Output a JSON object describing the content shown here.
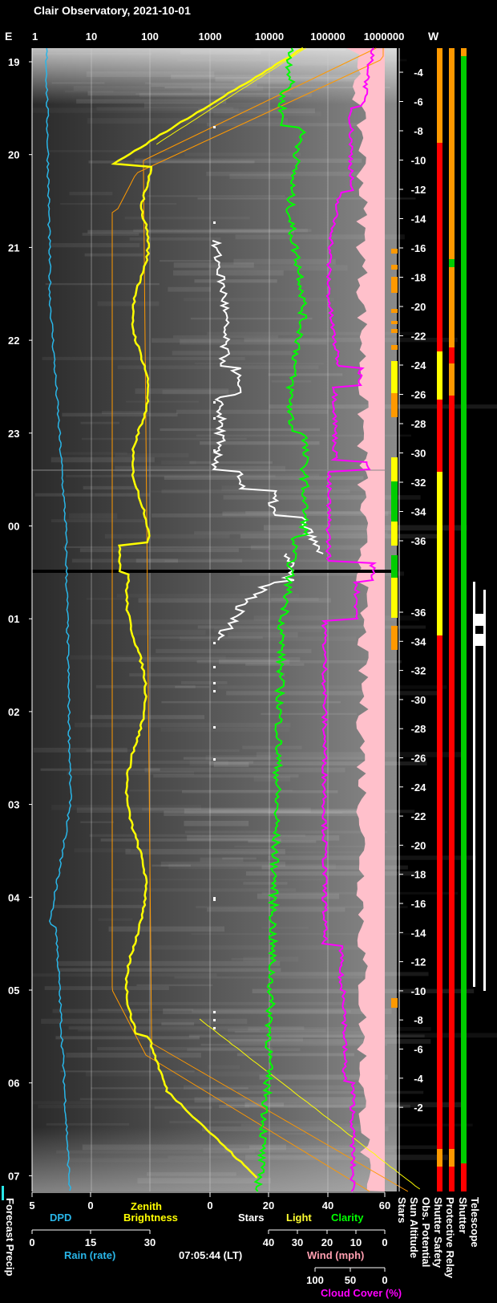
{
  "title": "Clair Observatory, 2021-10-01",
  "top_axis": {
    "left_label": "E",
    "right_label": "W",
    "ticks": [
      "1",
      "10",
      "100",
      "1000",
      "10000",
      "100000",
      "1000000"
    ]
  },
  "time_ticks": [
    "19",
    "20",
    "21",
    "22",
    "23",
    "00",
    "01",
    "02",
    "03",
    "04",
    "05",
    "06",
    "07"
  ],
  "sun_altitude_ticks": [
    "-4",
    "-6",
    "-8",
    "-10",
    "-12",
    "-14",
    "-16",
    "-18",
    "-20",
    "-22",
    "-24",
    "-26",
    "-28",
    "-30",
    "-32",
    "-34",
    "-36",
    "-36",
    "-34",
    "-32",
    "-30",
    "-28",
    "-26",
    "-24",
    "-22",
    "-20",
    "-18",
    "-16",
    "-14",
    "-12",
    "-10",
    "-8",
    "-6",
    "-4",
    "-2"
  ],
  "bottom_axes": {
    "row1": {
      "ticks": [
        "5",
        "0",
        "0",
        "20",
        "40",
        "60"
      ],
      "labels": {
        "dpd": "DPD",
        "zenith": "Zenith",
        "brightness": "Brightness",
        "stars": "Stars",
        "light": "Light",
        "clarity": "Clarity"
      }
    },
    "row2": {
      "rain_ticks": [
        "0",
        "15",
        "30"
      ],
      "rain_label": "Rain (rate)",
      "time": "07:05:44 (LT)",
      "wind_ticks": [
        "40",
        "30",
        "20",
        "10",
        "0"
      ],
      "wind_label": "Wind (mph)"
    },
    "row3": {
      "cloud_ticks": [
        "100",
        "50",
        "0"
      ],
      "cloud_label": "Cloud Cover (%)"
    }
  },
  "vertical_labels": [
    "Stars",
    "Sun Altitude",
    "Obs. Potential",
    "Shutter Safety",
    "Protective Relay",
    "Shutter",
    "Telescope"
  ],
  "forecast_label": "Forecast Precip",
  "colors": {
    "dpd": "#29b6e8",
    "zenith": "#ffff00",
    "stars": "#ffffff",
    "light": "#ffff30",
    "clarity": "#00ff00",
    "cloud": "#ff00ff",
    "sun": "#ff9900",
    "pink": "#ffc0cb",
    "red": "#ff0000",
    "orange": "#ff9900",
    "green": "#00cc00",
    "yellow": "#ffff00"
  },
  "chart_data": {
    "type": "line",
    "title": "Clair Observatory, 2021-10-01",
    "y_axis": "local time (hours)",
    "y_range": [
      "19:00",
      "07:05"
    ],
    "x_axis_scale": "log",
    "x_range": [
      1,
      1000000
    ],
    "series": [
      {
        "name": "DPD",
        "x": [
          3,
          3,
          2.9,
          2.7,
          2.4,
          2.1,
          1.9,
          1.8,
          1.7,
          1.6,
          1.7,
          2.0,
          2.2
        ],
        "t": [
          19,
          20,
          21,
          22,
          23,
          0,
          1,
          2,
          3,
          4,
          5,
          6,
          7
        ]
      },
      {
        "name": "Zenith Brightness",
        "x": [
          10000,
          400,
          70,
          55,
          60,
          35,
          35,
          60,
          60,
          70,
          75,
          200,
          30000
        ],
        "t": [
          19,
          20,
          21,
          22,
          23,
          0,
          0.5,
          1.5,
          3,
          4,
          5,
          6,
          7
        ]
      },
      {
        "name": "Stars",
        "x": [
          0,
          0,
          4,
          10,
          20,
          45,
          35,
          20,
          0,
          0,
          0,
          0
        ],
        "t": [
          19,
          21,
          21.2,
          22.3,
          23.5,
          0.3,
          0.5,
          1.2,
          1.5,
          3,
          5.5,
          6
        ]
      },
      {
        "name": "Clarity",
        "x": [
          38,
          35,
          38,
          40,
          38,
          37,
          35,
          32,
          32,
          30,
          28,
          26,
          24
        ],
        "t": [
          19,
          19.5,
          21,
          22,
          23,
          0,
          1,
          2,
          3,
          4,
          5,
          6,
          7
        ]
      },
      {
        "name": "Cloud Cover",
        "x": [
          50,
          50,
          45,
          45,
          48,
          45,
          48,
          46,
          45,
          44,
          44,
          43,
          42
        ],
        "t": [
          19,
          20,
          21,
          22,
          23,
          0,
          1,
          2,
          3,
          4,
          5,
          6,
          7
        ]
      }
    ]
  }
}
